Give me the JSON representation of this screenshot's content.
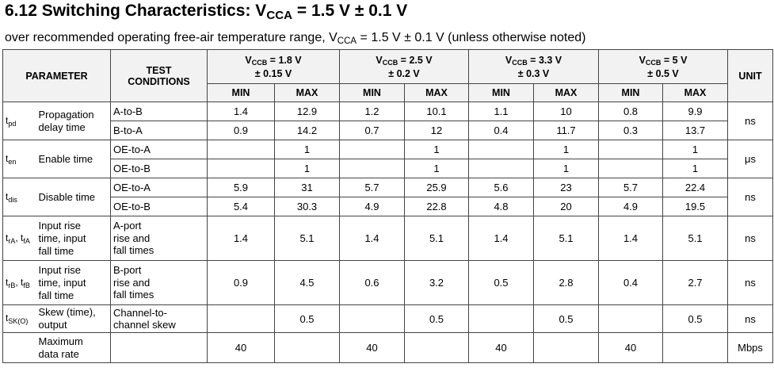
{
  "heading": {
    "section": "6.12",
    "title_prefix": "Switching Characteristics: V",
    "title_sub": "CCA",
    "title_suffix": " = 1.5 V ± 0.1 V"
  },
  "subtitle": {
    "prefix": "over recommended operating free-air temperature range, V",
    "sub": "CCA",
    "suffix": " = 1.5 V ± 0.1 V (unless otherwise noted)"
  },
  "table": {
    "header": {
      "parameter": "PARAMETER",
      "test_line1": "TEST",
      "test_line2": "CONDITIONS",
      "unit": "UNIT",
      "min": "MIN",
      "max": "MAX",
      "vccb_prefix": "V",
      "vccb_sub": "CCB",
      "groups": [
        {
          "nominal": " = 1.8 V",
          "tolerance": "± 0.15 V"
        },
        {
          "nominal": " = 2.5 V",
          "tolerance": "± 0.2 V"
        },
        {
          "nominal": " = 3.3 V",
          "tolerance": "± 0.3 V"
        },
        {
          "nominal": " = 5 V",
          "tolerance": "± 0.5 V"
        }
      ]
    },
    "params": {
      "tpd": {
        "symbol": "t",
        "symbol_sub": "pd",
        "name_line1": "Propagation",
        "name_line2": "delay time",
        "unit": "ns"
      },
      "ten": {
        "symbol": "t",
        "symbol_sub": "en",
        "name": "Enable time",
        "unit": "μs"
      },
      "tdis": {
        "symbol": "t",
        "symbol_sub": "dis",
        "name": "Disable time",
        "unit": "ns"
      },
      "trA": {
        "symbol": "t",
        "symbol_sub": "rA",
        "sep": ", t",
        "symbol_sub2": "fA",
        "name_line1": "Input rise",
        "name_line2": "time, input",
        "name_line3": "fall time",
        "cond_line1": "A-port",
        "cond_line2": "rise and",
        "cond_line3": "fall times",
        "unit": "ns"
      },
      "trB": {
        "symbol": "t",
        "symbol_sub": "rB",
        "sep": ", t",
        "symbol_sub2": "fB",
        "name_line1": "Input rise",
        "name_line2": "time, input",
        "name_line3": "fall time",
        "cond_line1": "B-port",
        "cond_line2": "rise and",
        "cond_line3": "fall times",
        "unit": "ns"
      },
      "tsk": {
        "symbol": "t",
        "symbol_sub": "SK(O)",
        "name_line1": "Skew (time),",
        "name_line2": "output",
        "cond_line1": "Channel-to-",
        "cond_line2": "channel skew",
        "unit": "ns"
      },
      "rate": {
        "name_line1": "Maximum",
        "name_line2": "data rate",
        "unit": "Mbps"
      }
    },
    "rows": {
      "tpd_ab": {
        "cond": "A-to-B",
        "v": [
          "1.4",
          "12.9",
          "1.2",
          "10.1",
          "1.1",
          "10",
          "0.8",
          "9.9"
        ]
      },
      "tpd_ba": {
        "cond": "B-to-A",
        "v": [
          "0.9",
          "14.2",
          "0.7",
          "12",
          "0.4",
          "11.7",
          "0.3",
          "13.7"
        ]
      },
      "ten_a": {
        "cond": "OE-to-A",
        "v": [
          "",
          "1",
          "",
          "1",
          "",
          "1",
          "",
          "1"
        ]
      },
      "ten_b": {
        "cond": "OE-to-B",
        "v": [
          "",
          "1",
          "",
          "1",
          "",
          "1",
          "",
          "1"
        ]
      },
      "tdis_a": {
        "cond": "OE-to-A",
        "v": [
          "5.9",
          "31",
          "5.7",
          "25.9",
          "5.6",
          "23",
          "5.7",
          "22.4"
        ]
      },
      "tdis_b": {
        "cond": "OE-to-B",
        "v": [
          "5.4",
          "30.3",
          "4.9",
          "22.8",
          "4.8",
          "20",
          "4.9",
          "19.5"
        ]
      },
      "tr_a": {
        "v": [
          "1.4",
          "5.1",
          "1.4",
          "5.1",
          "1.4",
          "5.1",
          "1.4",
          "5.1"
        ]
      },
      "tr_b": {
        "v": [
          "0.9",
          "4.5",
          "0.6",
          "3.2",
          "0.5",
          "2.8",
          "0.4",
          "2.7"
        ]
      },
      "tsk": {
        "v": [
          "",
          "0.5",
          "",
          "0.5",
          "",
          "0.5",
          "",
          "0.5"
        ]
      },
      "rate": {
        "v": [
          "40",
          "",
          "40",
          "",
          "40",
          "",
          "40",
          ""
        ]
      }
    }
  }
}
